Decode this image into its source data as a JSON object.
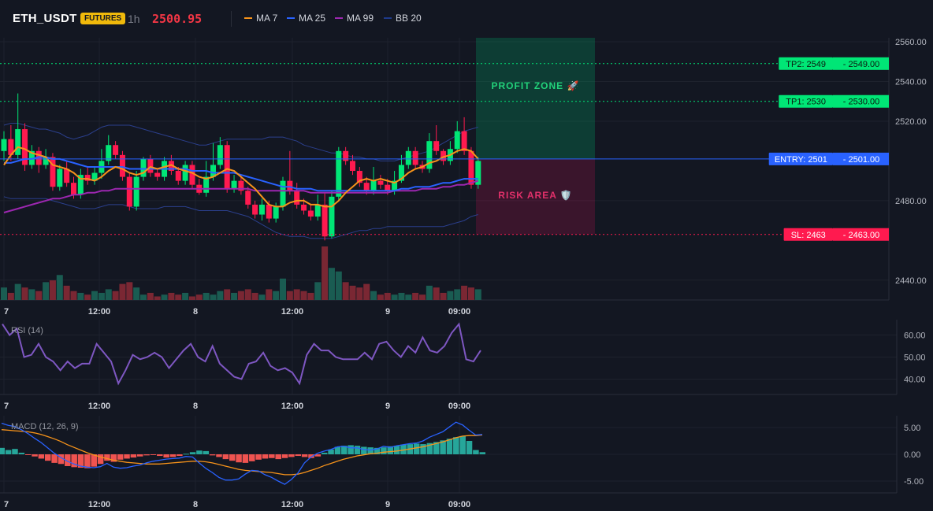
{
  "header": {
    "symbol": "ETH_USDT",
    "badge": "FUTURES",
    "timeframe": "1h",
    "price": "2500.95",
    "legend": [
      {
        "label": "MA 7",
        "color": "#f7931a"
      },
      {
        "label": "MA 25",
        "color": "#2962ff"
      },
      {
        "label": "MA 99",
        "color": "#9c27b0"
      },
      {
        "label": "BB 20",
        "color": "#1e3a8a"
      }
    ]
  },
  "colors": {
    "up": "#089981",
    "down": "#f23645",
    "up_bright": "#00e676",
    "down_bright": "#ff1a4f",
    "vol_up": "#1a5c52",
    "vol_down": "#7a2733",
    "entry": "#2962ff",
    "tp": "#00e676",
    "sl": "#ff1a4f",
    "rsi": "#7e57c2",
    "macd": "#2962ff",
    "signal": "#f7931a",
    "hist_up": "#26a69a",
    "hist_down": "#ef5350"
  },
  "chart_data": [
    {
      "type": "candlestick",
      "title": "",
      "ylim": [
        2430,
        2562
      ],
      "yticks": [
        "2560.00",
        "2540.00",
        "2520.00",
        "2480.00",
        "2440.00"
      ],
      "xticks": [
        "7",
        "12:00",
        "8",
        "12:00",
        "9",
        "09:00"
      ],
      "candles": [
        [
          2505,
          2511,
          2500,
          2515,
          2497
        ],
        [
          2511,
          2503,
          2500,
          2518,
          2498
        ],
        [
          2503,
          2516,
          2501,
          2534,
          2499
        ],
        [
          2516,
          2498,
          2495,
          2519,
          2493
        ],
        [
          2498,
          2505,
          2496,
          2508,
          2494
        ],
        [
          2505,
          2498,
          2494,
          2507,
          2492
        ],
        [
          2498,
          2502,
          2496,
          2506,
          2494
        ],
        [
          2502,
          2487,
          2485,
          2504,
          2480
        ],
        [
          2487,
          2496,
          2485,
          2498,
          2481
        ],
        [
          2496,
          2489,
          2487,
          2500,
          2483
        ],
        [
          2489,
          2483,
          2481,
          2492,
          2479
        ],
        [
          2483,
          2493,
          2481,
          2496,
          2480
        ],
        [
          2493,
          2490,
          2488,
          2497,
          2487
        ],
        [
          2490,
          2494,
          2488,
          2497,
          2487
        ],
        [
          2494,
          2500,
          2491,
          2506,
          2488
        ],
        [
          2500,
          2508,
          2498,
          2513,
          2496
        ],
        [
          2508,
          2503,
          2501,
          2510,
          2498
        ],
        [
          2503,
          2492,
          2490,
          2505,
          2488
        ],
        [
          2492,
          2477,
          2475,
          2494,
          2472
        ],
        [
          2477,
          2492,
          2475,
          2495,
          2473
        ],
        [
          2492,
          2501,
          2490,
          2502,
          2488
        ],
        [
          2501,
          2494,
          2492,
          2503,
          2490
        ],
        [
          2494,
          2492,
          2490,
          2496,
          2489
        ],
        [
          2492,
          2500,
          2490,
          2502,
          2489
        ],
        [
          2500,
          2495,
          2493,
          2503,
          2491
        ],
        [
          2495,
          2490,
          2488,
          2497,
          2486
        ],
        [
          2490,
          2498,
          2488,
          2500,
          2487
        ],
        [
          2498,
          2488,
          2486,
          2500,
          2484
        ],
        [
          2488,
          2484,
          2483,
          2491,
          2478
        ],
        [
          2484,
          2492,
          2482,
          2500,
          2481
        ],
        [
          2492,
          2498,
          2490,
          2509,
          2488
        ],
        [
          2498,
          2508,
          2496,
          2512,
          2495
        ],
        [
          2508,
          2486,
          2484,
          2510,
          2482
        ],
        [
          2486,
          2490,
          2484,
          2493,
          2481
        ],
        [
          2490,
          2485,
          2483,
          2493,
          2482
        ],
        [
          2485,
          2478,
          2476,
          2487,
          2474
        ],
        [
          2478,
          2473,
          2471,
          2480,
          2469
        ],
        [
          2473,
          2478,
          2470,
          2481,
          2469
        ],
        [
          2478,
          2471,
          2469,
          2480,
          2465
        ],
        [
          2471,
          2477,
          2469,
          2479,
          2465
        ],
        [
          2477,
          2490,
          2475,
          2492,
          2474
        ],
        [
          2490,
          2485,
          2483,
          2505,
          2480
        ],
        [
          2485,
          2478,
          2476,
          2489,
          2477
        ],
        [
          2478,
          2475,
          2473,
          2481,
          2472
        ],
        [
          2475,
          2472,
          2470,
          2478,
          2468
        ],
        [
          2472,
          2478,
          2470,
          2483,
          2469
        ],
        [
          2478,
          2462,
          2460,
          2484,
          2459
        ],
        [
          2462,
          2482,
          2461,
          2485,
          2460
        ],
        [
          2482,
          2505,
          2480,
          2507,
          2478
        ],
        [
          2505,
          2500,
          2498,
          2507,
          2496
        ],
        [
          2500,
          2495,
          2493,
          2503,
          2491
        ],
        [
          2495,
          2489,
          2487,
          2497,
          2486
        ],
        [
          2489,
          2485,
          2483,
          2492,
          2482
        ],
        [
          2485,
          2490,
          2483,
          2497,
          2482
        ],
        [
          2490,
          2488,
          2486,
          2493,
          2485
        ],
        [
          2488,
          2485,
          2483,
          2491,
          2482
        ],
        [
          2485,
          2490,
          2483,
          2495,
          2482
        ],
        [
          2490,
          2498,
          2489,
          2503,
          2487
        ],
        [
          2498,
          2505,
          2496,
          2507,
          2495
        ],
        [
          2505,
          2498,
          2496,
          2507,
          2495
        ],
        [
          2498,
          2496,
          2494,
          2500,
          2493
        ],
        [
          2496,
          2510,
          2494,
          2514,
          2493
        ],
        [
          2510,
          2505,
          2503,
          2518,
          2502
        ],
        [
          2505,
          2500,
          2498,
          2506,
          2496
        ],
        [
          2500,
          2506,
          2498,
          2510,
          2497
        ],
        [
          2506,
          2515,
          2504,
          2520,
          2502
        ],
        [
          2515,
          2505,
          2503,
          2522,
          2500
        ],
        [
          2505,
          2488,
          2486,
          2507,
          2483
        ],
        [
          2488,
          2500,
          2486,
          2502,
          2485
        ]
      ],
      "ma7": [
        2498,
        2503,
        2507,
        2506,
        2504,
        2503,
        2502,
        2498,
        2497,
        2496,
        2494,
        2491,
        2491,
        2490,
        2492,
        2495,
        2497,
        2496,
        2494,
        2493,
        2494,
        2497,
        2496,
        2497,
        2498,
        2496,
        2495,
        2494,
        2492,
        2491,
        2492,
        2494,
        2496,
        2495,
        2492,
        2489,
        2486,
        2482,
        2478,
        2477,
        2477,
        2479,
        2480,
        2480,
        2478,
        2478,
        2477,
        2477,
        2480,
        2484,
        2487,
        2490,
        2491,
        2490,
        2491,
        2490,
        2489,
        2491,
        2494,
        2496,
        2497,
        2499,
        2500,
        2502,
        2503,
        2505,
        2506,
        2505,
        2501
      ],
      "ma25": [
        2499,
        2499,
        2500,
        2501,
        2501,
        2502,
        2502,
        2501,
        2501,
        2500,
        2499,
        2498,
        2497,
        2497,
        2497,
        2497,
        2497,
        2497,
        2496,
        2496,
        2496,
        2496,
        2496,
        2496,
        2496,
        2496,
        2496,
        2495,
        2495,
        2495,
        2494,
        2494,
        2494,
        2494,
        2493,
        2492,
        2491,
        2490,
        2489,
        2488,
        2487,
        2487,
        2486,
        2486,
        2486,
        2485,
        2485,
        2485,
        2485,
        2485,
        2485,
        2485,
        2485,
        2485,
        2485,
        2485,
        2485,
        2486,
        2486,
        2487,
        2487,
        2487,
        2488,
        2489,
        2489,
        2490,
        2491,
        2491,
        2491
      ],
      "ma99": [
        2474,
        2475,
        2476,
        2477,
        2478,
        2479,
        2480,
        2481,
        2481,
        2482,
        2483,
        2483,
        2484,
        2484,
        2485,
        2485,
        2486,
        2486,
        2486,
        2486,
        2486,
        2486,
        2486,
        2486,
        2486,
        2486,
        2486,
        2486,
        2486,
        2486,
        2486,
        2486,
        2486,
        2486,
        2486,
        2486,
        2485,
        2485,
        2485,
        2485,
        2485,
        2485,
        2485,
        2485,
        2484,
        2484,
        2484,
        2484,
        2484,
        2484,
        2484,
        2484,
        2484,
        2484,
        2484,
        2484,
        2485,
        2485,
        2485,
        2485,
        2486,
        2486,
        2486,
        2487,
        2487,
        2488,
        2488,
        2489,
        2490
      ],
      "bb_upper": [
        2518,
        2519,
        2519,
        2518,
        2517,
        2516,
        2516,
        2515,
        2514,
        2512,
        2511,
        2512,
        2513,
        2515,
        2517,
        2518,
        2518,
        2518,
        2518,
        2517,
        2516,
        2515,
        2514,
        2513,
        2512,
        2511,
        2510,
        2509,
        2508,
        2508,
        2509,
        2510,
        2511,
        2511,
        2511,
        2511,
        2511,
        2511,
        2512,
        2512,
        2512,
        2511,
        2510,
        2508,
        2507,
        2506,
        2505,
        2504,
        2504,
        2503,
        2502,
        2502,
        2501,
        2501,
        2500,
        2500,
        2500,
        2501,
        2502,
        2503,
        2504,
        2505,
        2507,
        2509,
        2511,
        2513,
        2515,
        2516,
        2517
      ],
      "bb_lower": [
        2482,
        2481,
        2481,
        2481,
        2481,
        2481,
        2481,
        2480,
        2479,
        2478,
        2477,
        2476,
        2476,
        2476,
        2477,
        2478,
        2478,
        2478,
        2477,
        2476,
        2476,
        2476,
        2476,
        2477,
        2477,
        2477,
        2477,
        2476,
        2475,
        2475,
        2475,
        2475,
        2475,
        2474,
        2473,
        2472,
        2470,
        2468,
        2466,
        2464,
        2463,
        2462,
        2462,
        2462,
        2461,
        2461,
        2461,
        2461,
        2462,
        2463,
        2464,
        2465,
        2465,
        2466,
        2466,
        2467,
        2467,
        2467,
        2467,
        2467,
        2467,
        2467,
        2467,
        2467,
        2468,
        2469,
        2470,
        2472,
        2473
      ],
      "volume": [
        35,
        20,
        45,
        35,
        30,
        25,
        50,
        55,
        70,
        40,
        25,
        20,
        15,
        25,
        20,
        30,
        25,
        45,
        50,
        35,
        15,
        20,
        10,
        15,
        20,
        15,
        20,
        10,
        15,
        20,
        15,
        25,
        30,
        20,
        25,
        30,
        20,
        15,
        30,
        25,
        60,
        25,
        30,
        25,
        20,
        50,
        150,
        90,
        80,
        50,
        40,
        35,
        45,
        25,
        15,
        20,
        15,
        20,
        15,
        20,
        15,
        40,
        35,
        20,
        25,
        30,
        40,
        35,
        30
      ],
      "levels": [
        {
          "label": "TP2: 2549",
          "value": 2549,
          "axis": "2549.00",
          "kind": "tp"
        },
        {
          "label": "TP1: 2530",
          "value": 2530,
          "axis": "2530.00",
          "kind": "tp"
        },
        {
          "label": "ENTRY: 2501",
          "value": 2501,
          "axis": "2501.00",
          "kind": "entry"
        },
        {
          "label": "SL: 2463",
          "value": 2463,
          "axis": "2463.00",
          "kind": "sl"
        }
      ],
      "zones": [
        {
          "label": "PROFIT ZONE 🚀",
          "from": 2501,
          "to": 2562,
          "kind": "profit"
        },
        {
          "label": "RISK AREA 🛡️",
          "from": 2463,
          "to": 2501,
          "kind": "risk"
        }
      ]
    },
    {
      "type": "line",
      "title": "RSI (14)",
      "ylim": [
        33,
        67
      ],
      "yticks": [
        "60.00",
        "50.00",
        "40.00"
      ],
      "xticks": [
        "7",
        "12:00",
        "8",
        "12:00",
        "9",
        "09:00"
      ],
      "values": [
        65,
        60,
        63,
        50,
        51,
        56,
        50,
        48,
        44,
        48,
        45,
        47,
        47,
        56,
        52,
        48,
        38,
        44,
        51,
        49,
        50,
        52,
        50,
        45,
        49,
        53,
        56,
        50,
        48,
        55,
        47,
        44,
        41,
        40,
        47,
        48,
        52,
        46,
        44,
        45,
        43,
        38,
        51,
        56,
        53,
        53,
        50,
        49,
        49,
        49,
        52,
        49,
        56,
        57,
        53,
        50,
        55,
        52,
        59,
        53,
        52,
        55,
        61,
        65,
        49,
        48,
        53
      ]
    },
    {
      "type": "bar",
      "title": "MACD (12, 26, 9)",
      "ylim": [
        -7.2,
        7.2
      ],
      "yticks": [
        "5.00",
        "0.00",
        "-5.00"
      ],
      "xticks": [
        "7",
        "12:00",
        "8",
        "12:00",
        "9",
        "09:00"
      ],
      "histogram": [
        1.2,
        0.8,
        1.0,
        0.3,
        -0.1,
        -0.4,
        -0.8,
        -1.2,
        -1.6,
        -1.8,
        -2.2,
        -2.4,
        -2.5,
        -2.6,
        -2.3,
        -1.8,
        -1.2,
        -1.4,
        -1.0,
        -0.8,
        -0.6,
        -0.4,
        -0.2,
        -0.1,
        -0.3,
        -0.6,
        -0.5,
        -0.3,
        0.1,
        0.4,
        0.7,
        0.6,
        -0.2,
        -0.5,
        -0.9,
        -1.2,
        -1.5,
        -1.6,
        -1.3,
        -1.0,
        -0.8,
        -0.7,
        -0.9,
        -0.7,
        -0.5,
        -0.3,
        -0.5,
        -0.7,
        -0.4,
        0.3,
        0.9,
        1.4,
        1.6,
        1.7,
        1.6,
        1.4,
        1.3,
        1.2,
        1.3,
        1.5,
        1.6,
        1.8,
        1.9,
        2.0,
        1.9,
        2.1,
        2.3,
        2.6,
        2.9,
        3.2,
        3.4,
        2.5,
        0.8,
        0.4
      ],
      "macd": [
        5.8,
        5.4,
        5.2,
        4.6,
        3.9,
        3.0,
        2.2,
        1.2,
        0.2,
        -0.6,
        -1.3,
        -1.8,
        -2.2,
        -2.4,
        -2.5,
        -2.3,
        -1.7,
        -2.4,
        -2.6,
        -2.5,
        -2.2,
        -2.0,
        -1.6,
        -1.3,
        -1.1,
        -0.9,
        -0.8,
        -0.7,
        -0.4,
        -0.5,
        -1.6,
        -2.6,
        -3.4,
        -4.3,
        -4.8,
        -4.8,
        -4.6,
        -3.7,
        -3.0,
        -3.1,
        -3.8,
        -4.3,
        -5.0,
        -5.6,
        -4.7,
        -3.5,
        -1.6,
        -0.5,
        0.2,
        0.6,
        0.9,
        1.4,
        1.5,
        1.2,
        1.2,
        0.9,
        0.8,
        1.0,
        1.5,
        1.3,
        1.6,
        1.8,
        2.0,
        2.1,
        2.5,
        3.2,
        3.7,
        4.2,
        5.1,
        6.0,
        5.5,
        4.5,
        3.6,
        3.7
      ],
      "signal": [
        4.6,
        4.5,
        4.4,
        4.3,
        4.2,
        4.0,
        3.7,
        3.3,
        2.9,
        2.4,
        1.8,
        1.3,
        0.8,
        0.3,
        -0.1,
        -0.5,
        -0.8,
        -1.1,
        -1.3,
        -1.5,
        -1.6,
        -1.7,
        -1.8,
        -1.8,
        -1.8,
        -1.7,
        -1.6,
        -1.5,
        -1.4,
        -1.3,
        -1.3,
        -1.4,
        -1.6,
        -1.9,
        -2.2,
        -2.5,
        -2.8,
        -3.0,
        -3.1,
        -3.2,
        -3.3,
        -3.4,
        -3.6,
        -3.8,
        -3.8,
        -3.7,
        -3.4,
        -3.0,
        -2.6,
        -2.1,
        -1.7,
        -1.3,
        -0.9,
        -0.6,
        -0.3,
        -0.1,
        0.1,
        0.2,
        0.4,
        0.5,
        0.6,
        0.8,
        1.0,
        1.2,
        1.4,
        1.7,
        2.0,
        2.3,
        2.7,
        3.1,
        3.4,
        3.5,
        3.5,
        3.6
      ]
    }
  ]
}
